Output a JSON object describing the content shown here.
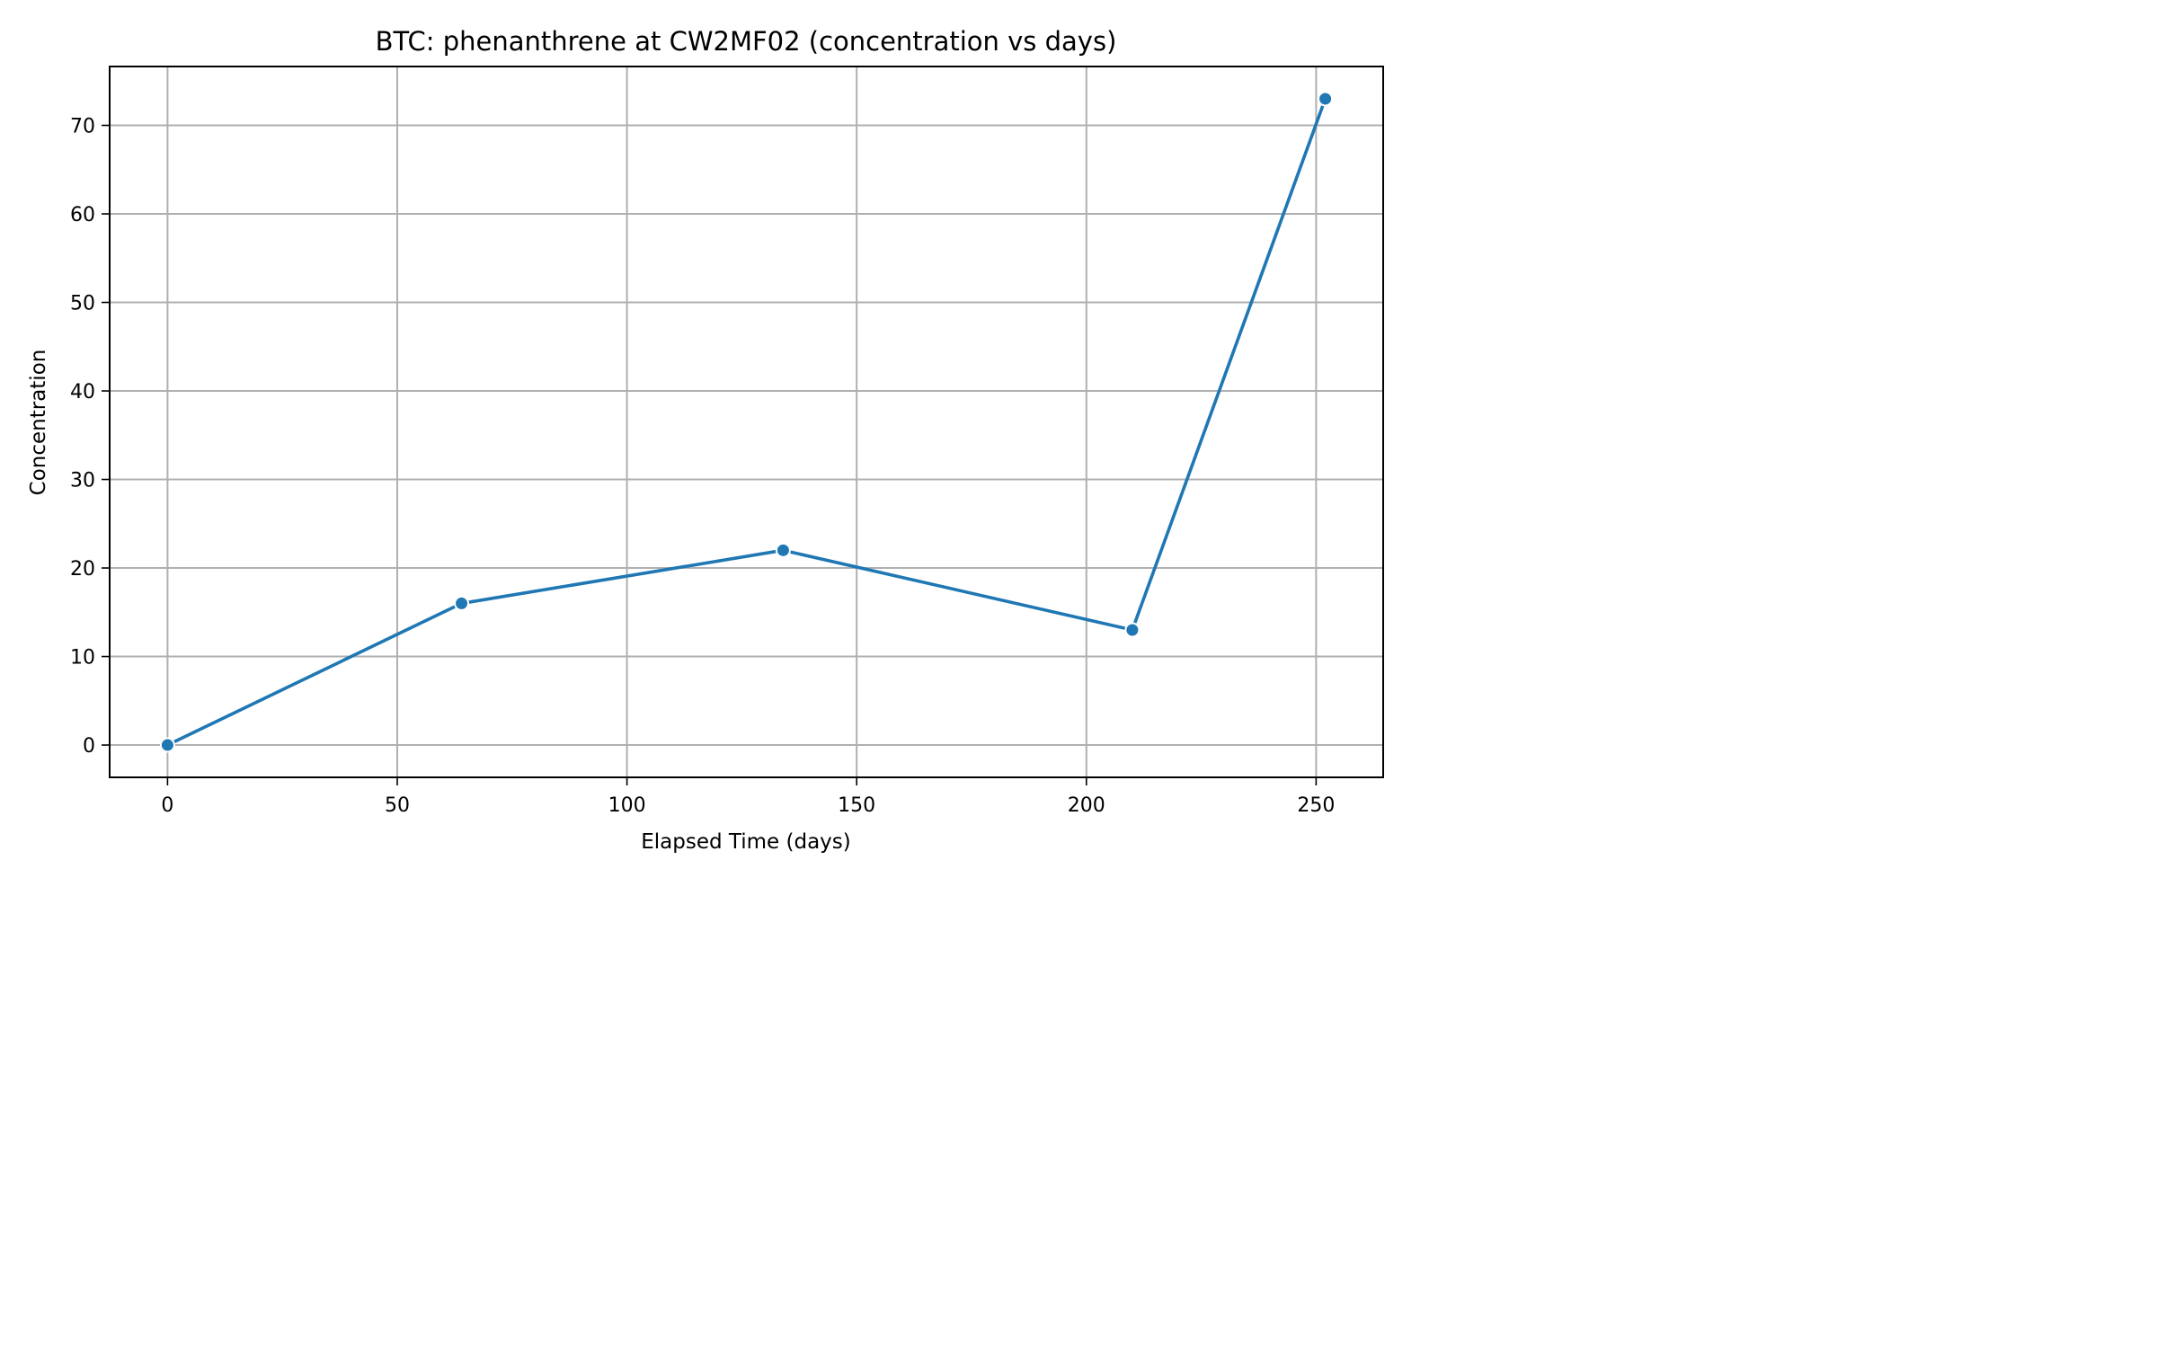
{
  "chart_data": {
    "type": "line",
    "title": "BTC: phenanthrene at CW2MF02 (concentration vs days)",
    "xlabel": "Elapsed Time (days)",
    "ylabel": "Concentration",
    "xlim": [
      -12.6,
      264.6
    ],
    "ylim": [
      -3.65,
      76.65
    ],
    "xticks": [
      0,
      50,
      100,
      150,
      200,
      250
    ],
    "yticks": [
      0,
      10,
      20,
      30,
      40,
      50,
      60,
      70
    ],
    "grid": true,
    "legend": "none",
    "series": [
      {
        "color": "#1f77b4",
        "marker": "circle",
        "x": [
          0,
          64,
          134,
          210,
          252
        ],
        "y": [
          0,
          16,
          22,
          13,
          73
        ]
      }
    ]
  }
}
